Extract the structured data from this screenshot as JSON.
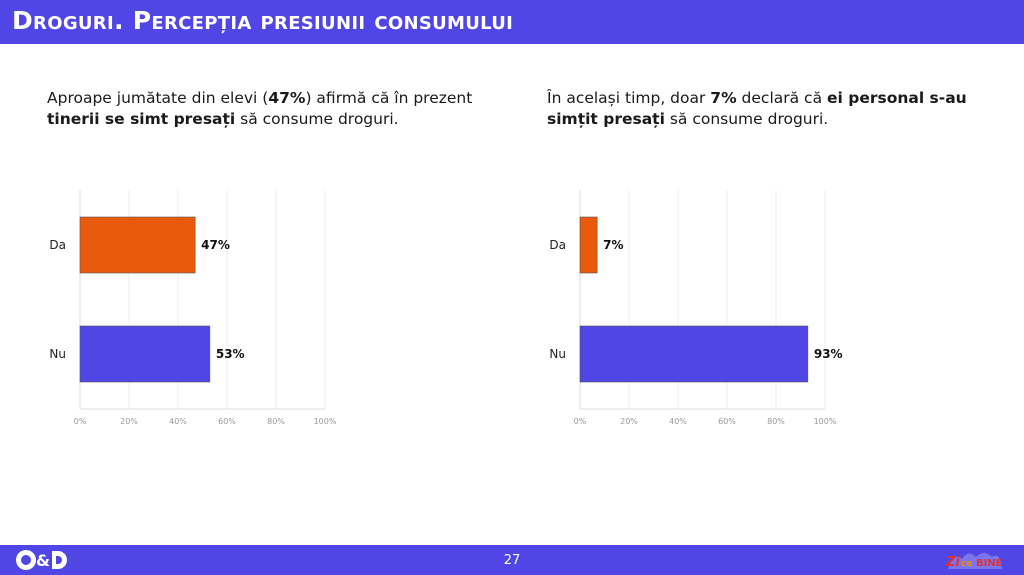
{
  "header": {
    "title": "Droguri. Percepția presiunii consumului"
  },
  "intro_left": {
    "p1": "Aproape jumătate din elevi (",
    "b1": "47%",
    "p2": ") afirmă că în prezent ",
    "b2": "tinerii se simt presați",
    "p3": " să consume droguri."
  },
  "intro_right": {
    "p1": "În același timp, doar ",
    "b1": "7%",
    "p2": " declară că ",
    "b2": "ei personal s-au simțit presați",
    "p3": " să consume droguri."
  },
  "chart_data": [
    {
      "type": "bar",
      "orientation": "horizontal",
      "categories": [
        "Da",
        "Nu"
      ],
      "values": [
        47,
        53
      ],
      "value_labels": [
        "47%",
        "53%"
      ],
      "colors": [
        "#e8590c",
        "#4f46e5"
      ],
      "xlim": [
        0,
        100
      ],
      "x_ticks": [
        "0%",
        "20%",
        "40%",
        "60%",
        "80%",
        "100%"
      ]
    },
    {
      "type": "bar",
      "orientation": "horizontal",
      "categories": [
        "Da",
        "Nu"
      ],
      "values": [
        7,
        93
      ],
      "value_labels": [
        "7%",
        "93%"
      ],
      "colors": [
        "#e8590c",
        "#4f46e5"
      ],
      "xlim": [
        0,
        100
      ],
      "x_ticks": [
        "0%",
        "20%",
        "40%",
        "60%",
        "80%",
        "100%"
      ]
    }
  ],
  "footer": {
    "page_number": "27",
    "logo_left": "C&D",
    "logo_right": "ZiceBine"
  },
  "colors": {
    "brand": "#4f46e5",
    "accent": "#e8590c"
  }
}
